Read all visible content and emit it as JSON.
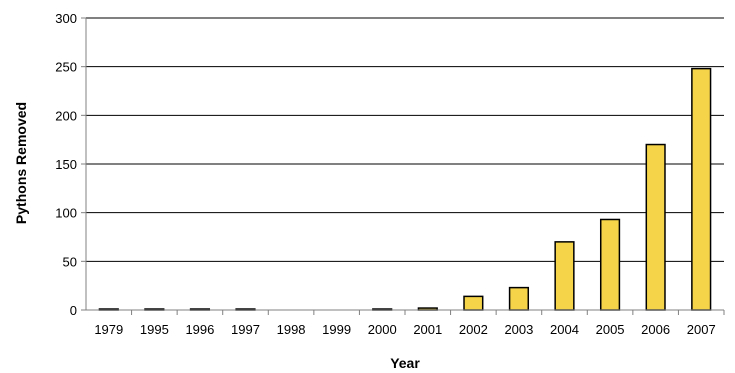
{
  "chart_data": {
    "type": "bar",
    "title": "",
    "xlabel": "Year",
    "ylabel": "Pythons Removed",
    "categories": [
      "1979",
      "1995",
      "1996",
      "1997",
      "1998",
      "1999",
      "2000",
      "2001",
      "2002",
      "2003",
      "2004",
      "2005",
      "2006",
      "2007"
    ],
    "values": [
      1,
      1,
      1,
      1,
      0,
      0,
      1,
      2,
      14,
      23,
      70,
      93,
      170,
      248
    ],
    "ylim": [
      0,
      300
    ],
    "yticks": [
      "0",
      "50",
      "100",
      "150",
      "200",
      "250",
      "300"
    ],
    "grid": true,
    "legend": "none",
    "colors": {
      "bar_fill": "#F5D44A",
      "bar_stroke": "#000000",
      "gridline": "#000000",
      "axis": "#808080"
    }
  }
}
